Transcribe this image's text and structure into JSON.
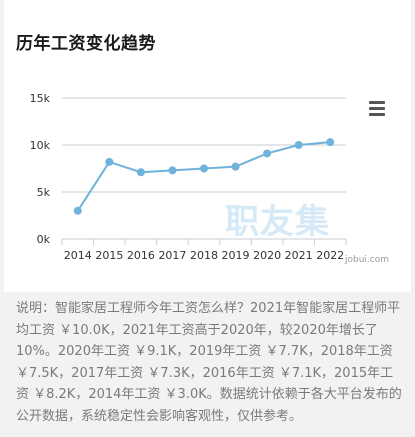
{
  "title": "历年工资变化趋势",
  "watermark": {
    "brand": "职友集",
    "site": "jobui.com"
  },
  "description": "说明：智能家居工程师今年工资怎么样？2021年智能家居工程师平均工资 ￥10.0K，2021年工资高于2020年，较2020年增长了10%。2020年工资 ￥9.1K，2019年工资 ￥7.7K，2018年工资 ￥7.5K，2017年工资 ￥7.3K，2016年工资 ￥7.1K，2015年工资 ￥8.2K，2014年工资 ￥3.0K。数据统计依赖于各大平台发布的公开数据，系统稳定性会影响客观性，仅供参考。",
  "colors": {
    "line": "#6fb3dc",
    "grid": "#c9ced6",
    "axis_text": "#333333"
  },
  "chart_data": {
    "type": "line",
    "title": "历年工资变化趋势",
    "categories": [
      "2014",
      "2015",
      "2016",
      "2017",
      "2018",
      "2019",
      "2020",
      "2021",
      "2022"
    ],
    "values": [
      3.0,
      8.2,
      7.1,
      7.3,
      7.5,
      7.7,
      9.1,
      10.0,
      10.3
    ],
    "ylim": [
      0,
      15
    ],
    "yticks": [
      "0k",
      "5k",
      "10k",
      "15k"
    ],
    "xlabel": "",
    "ylabel": "",
    "grid": true
  }
}
